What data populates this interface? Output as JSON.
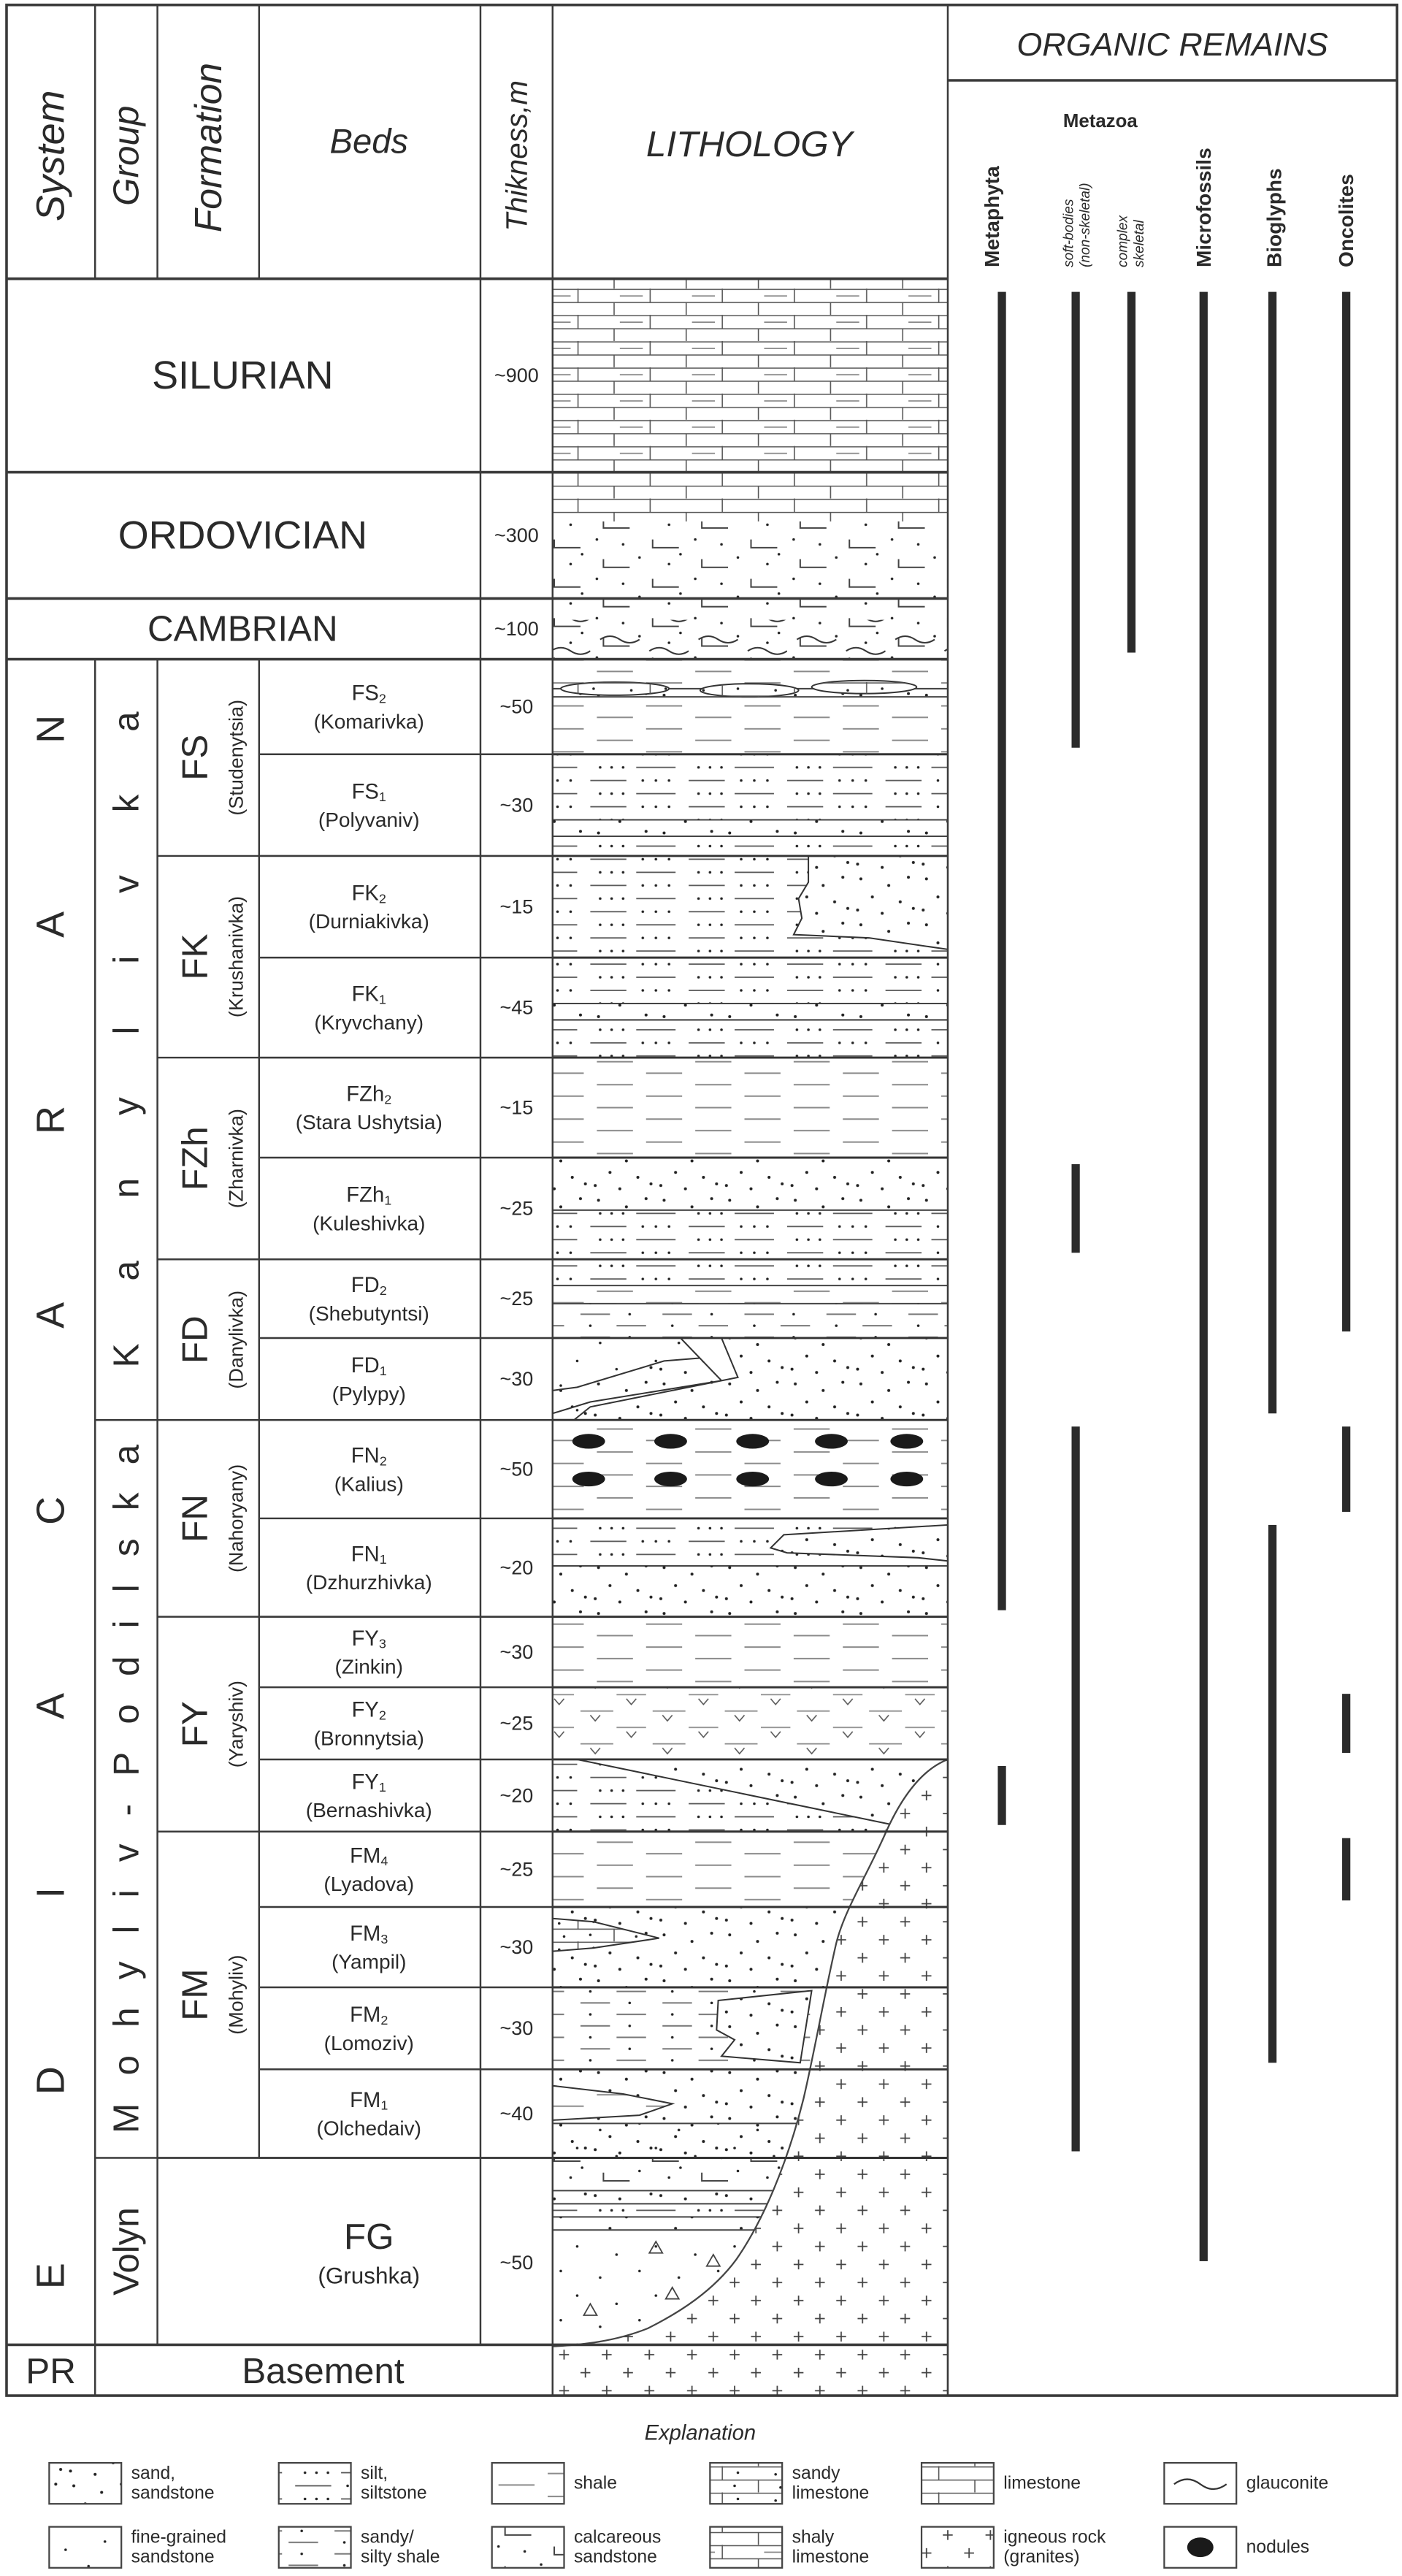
{
  "header": {
    "system": "System",
    "group": "Group",
    "formation": "Formation",
    "beds": "Beds",
    "thickness": "Thikness,m",
    "lithology": "LITHOLOGY",
    "organic_remains": "ORGANIC REMAINS",
    "metazoa": "Metazoa"
  },
  "organic_columns": [
    {
      "id": "metaphyta",
      "label": "Metaphyta"
    },
    {
      "id": "soft-bodies",
      "label": "soft-bodies",
      "label2": "(non-skeletal)"
    },
    {
      "id": "complex",
      "label": "complex",
      "label2": "skeletal"
    },
    {
      "id": "microfossils",
      "label": "Microfossils"
    },
    {
      "id": "bioglyphs",
      "label": "Bioglyphs"
    },
    {
      "id": "oncolites",
      "label": "Oncolites"
    }
  ],
  "upper_systems": [
    {
      "name": "SILURIAN",
      "thickness": "~900",
      "lithology": [
        "shaly-limestone"
      ]
    },
    {
      "name": "ORDOVICIAN",
      "thickness": "~300",
      "lithology": [
        "limestone",
        "calcareous-sandstone"
      ]
    },
    {
      "name": "CAMBRIAN",
      "thickness": "~100",
      "lithology": [
        "calcareous-sandstone",
        "glauconite"
      ]
    }
  ],
  "system": "EDIACARAN",
  "groups": [
    "Kanylivka",
    "Mohyliv-Podilska",
    "Volyn"
  ],
  "formations": [
    {
      "code": "FS",
      "name": "(Studenytsia)"
    },
    {
      "code": "FK",
      "name": "(Krushanivka)"
    },
    {
      "code": "FZh",
      "name": "(Zharnivka)"
    },
    {
      "code": "FD",
      "name": "(Danylivka)"
    },
    {
      "code": "FN",
      "name": "(Nahoryany)"
    },
    {
      "code": "FY",
      "name": "(Yaryshiv)"
    },
    {
      "code": "FM",
      "name": "(Mohyliv)"
    }
  ],
  "beds": [
    {
      "code": "FS",
      "sub": "2",
      "name": "(Komarivka)",
      "thickness": "~50",
      "lithology": [
        "shale",
        "sandy-limestone"
      ]
    },
    {
      "code": "FS",
      "sub": "1",
      "name": "(Polyvaniv)",
      "thickness": "~30",
      "lithology": [
        "silt-siltstone"
      ]
    },
    {
      "code": "FK",
      "sub": "2",
      "name": "(Durniakivka)",
      "thickness": "~15",
      "lithology": [
        "silt-siltstone",
        "sand-sandstone"
      ]
    },
    {
      "code": "FK",
      "sub": "1",
      "name": "(Kryvchany)",
      "thickness": "~45",
      "lithology": [
        "silt-siltstone"
      ]
    },
    {
      "code": "FZh",
      "sub": "2",
      "name": "(Stara Ushytsia)",
      "thickness": "~15",
      "lithology": [
        "shale"
      ]
    },
    {
      "code": "FZh",
      "sub": "1",
      "name": "(Kuleshivka)",
      "thickness": "~25",
      "lithology": [
        "sand-sandstone",
        "silt-siltstone"
      ]
    },
    {
      "code": "FD",
      "sub": "2",
      "name": "(Shebutyntsi)",
      "thickness": "~25",
      "lithology": [
        "silt-siltstone",
        "sandy-silty-shale"
      ]
    },
    {
      "code": "FD",
      "sub": "1",
      "name": "(Pylypy)",
      "thickness": "~30",
      "lithology": [
        "sand-sandstone",
        "fine-grained-sandstone"
      ]
    },
    {
      "code": "FN",
      "sub": "2",
      "name": "(Kalius)",
      "thickness": "~50",
      "lithology": [
        "shale",
        "nodules"
      ]
    },
    {
      "code": "FN",
      "sub": "1",
      "name": "(Dzhurzhivka)",
      "thickness": "~20",
      "lithology": [
        "silt-siltstone",
        "sand-sandstone"
      ]
    },
    {
      "code": "FY",
      "sub": "3",
      "name": "(Zinkin)",
      "thickness": "~30",
      "lithology": [
        "shale"
      ]
    },
    {
      "code": "FY",
      "sub": "2",
      "name": "(Bronnytsia)",
      "thickness": "~25",
      "lithology": [
        "shale"
      ]
    },
    {
      "code": "FY",
      "sub": "1",
      "name": "(Bernashivka)",
      "thickness": "~20",
      "lithology": [
        "silt-siltstone",
        "sand-sandstone"
      ]
    },
    {
      "code": "FM",
      "sub": "4",
      "name": "(Lyadova)",
      "thickness": "~25",
      "lithology": [
        "shale"
      ]
    },
    {
      "code": "FM",
      "sub": "3",
      "name": "(Yampil)",
      "thickness": "~30",
      "lithology": [
        "sand-sandstone",
        "sandy-limestone"
      ]
    },
    {
      "code": "FM",
      "sub": "2",
      "name": "(Lomoziv)",
      "thickness": "~30",
      "lithology": [
        "sandy-silty-shale",
        "sand-sandstone"
      ]
    },
    {
      "code": "FM",
      "sub": "1",
      "name": "(Olchedaiv)",
      "thickness": "~40",
      "lithology": [
        "sand-sandstone"
      ]
    }
  ],
  "fg": {
    "code": "FG",
    "name": "(Grushka)",
    "thickness": "~50"
  },
  "basement": {
    "system": "PR",
    "name": "Basement"
  },
  "organic_ranges": {
    "metaphyta": [
      [
        "SILURIAN",
        "FN1"
      ],
      [
        "FY1",
        "FY1"
      ]
    ],
    "soft-bodies": [
      [
        "SILURIAN",
        "FS2"
      ],
      [
        "FZh1",
        "FZh1"
      ],
      [
        "FN2",
        "FM1"
      ]
    ],
    "complex": [
      [
        "SILURIAN",
        "CAMBRIAN"
      ]
    ],
    "microfossils": [
      [
        "SILURIAN",
        "FG"
      ]
    ],
    "bioglyphs": [
      [
        "SILURIAN",
        "FD1"
      ],
      [
        "FN1",
        "FM2"
      ]
    ],
    "oncolites": [
      [
        "SILURIAN",
        "FD2"
      ],
      [
        "FN2",
        "FN2"
      ],
      [
        "FY2",
        "FY2"
      ],
      [
        "FM4",
        "FM4"
      ]
    ]
  },
  "legend": {
    "title": "Explanation",
    "items": [
      {
        "key": "sand-sandstone",
        "lines": [
          "sand,",
          "sandstone"
        ]
      },
      {
        "key": "silt-siltstone",
        "lines": [
          "silt,",
          "siltstone"
        ]
      },
      {
        "key": "shale",
        "lines": [
          "shale"
        ]
      },
      {
        "key": "sandy-limestone",
        "lines": [
          "sandy",
          "limestone"
        ]
      },
      {
        "key": "limestone",
        "lines": [
          "limestone"
        ]
      },
      {
        "key": "glauconite",
        "lines": [
          "glauconite"
        ]
      },
      {
        "key": "fine-grained-sandstone",
        "lines": [
          "fine-grained",
          "sandstone"
        ]
      },
      {
        "key": "sandy-silty-shale",
        "lines": [
          "sandy/",
          "silty shale"
        ]
      },
      {
        "key": "calcareous-sandstone",
        "lines": [
          "calcareous",
          "sandstone"
        ]
      },
      {
        "key": "shaly-limestone",
        "lines": [
          "shaly",
          "limestone"
        ]
      },
      {
        "key": "igneous-rock",
        "lines": [
          "igneous rock",
          "(granites)"
        ]
      },
      {
        "key": "nodules",
        "lines": [
          "nodules"
        ]
      }
    ]
  },
  "colors": {
    "line": "#3a3a3a",
    "range_bar": "#2b2b2b",
    "background": "#ffffff"
  }
}
